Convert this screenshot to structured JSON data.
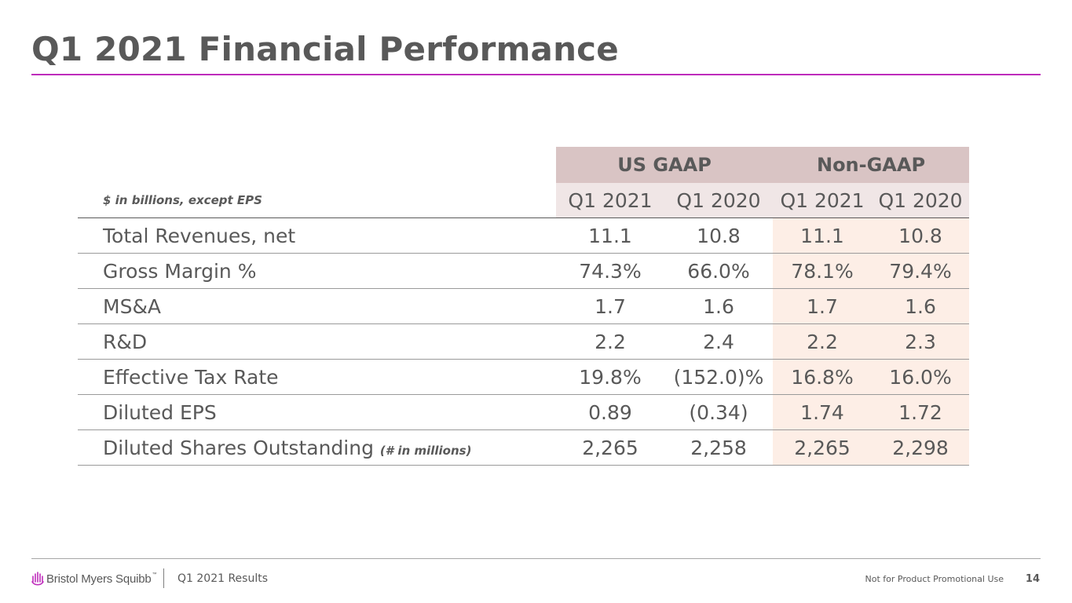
{
  "title": "Q1 2021 Financial Performance",
  "table": {
    "unit_note": "$ in billions, except EPS",
    "groups": [
      "US GAAP",
      "Non-GAAP"
    ],
    "periods": [
      "Q1 2021",
      "Q1 2020",
      "Q1 2021",
      "Q1 2020"
    ],
    "rows": [
      {
        "label": "Total Revenues, net",
        "note": "",
        "values": [
          "11.1",
          "10.8",
          "11.1",
          "10.8"
        ]
      },
      {
        "label": "Gross Margin %",
        "note": "",
        "values": [
          "74.3%",
          "66.0%",
          "78.1%",
          "79.4%"
        ]
      },
      {
        "label": "MS&A",
        "note": "",
        "values": [
          "1.7",
          "1.6",
          "1.7",
          "1.6"
        ]
      },
      {
        "label": "R&D",
        "note": "",
        "values": [
          "2.2",
          "2.4",
          "2.2",
          "2.3"
        ]
      },
      {
        "label": "Effective Tax Rate",
        "note": "",
        "values": [
          "19.8%",
          "(152.0)%",
          "16.8%",
          "16.0%"
        ]
      },
      {
        "label": "Diluted EPS",
        "note": "",
        "values": [
          "0.89",
          "(0.34)",
          "1.74",
          "1.72"
        ]
      },
      {
        "label": "Diluted Shares Outstanding",
        "note": "(# in millions)",
        "values": [
          "2,265",
          "2,258",
          "2,265",
          "2,298"
        ]
      }
    ]
  },
  "footer": {
    "logo_text": "Bristol Myers Squibb",
    "logo_tm": "™",
    "logo_icon": "bms-logo-icon",
    "deck_label": "Q1 2021 Results",
    "promo_note": "Not for Product Promotional Use",
    "page_number": "14"
  },
  "colors": {
    "accent": "#be2bbb",
    "logo_purple": "#be2bbb",
    "header_fill": "#d9c4c4",
    "period_fill": "#f0e6e6",
    "nongaap_fill": "#fdeee6",
    "text": "#595959"
  }
}
